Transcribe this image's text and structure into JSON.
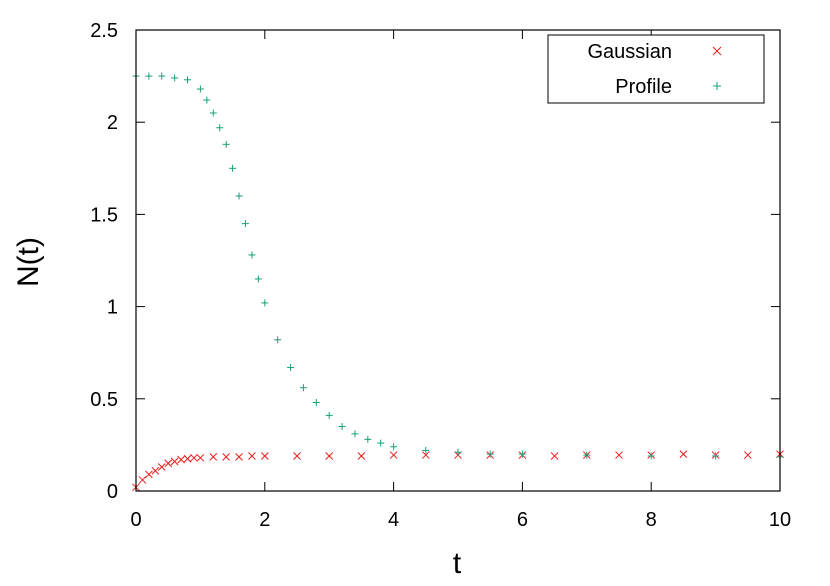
{
  "chart_data": {
    "type": "scatter",
    "title": "",
    "xlabel": "t",
    "ylabel": "N(t)",
    "xlim": [
      0,
      10
    ],
    "ylim": [
      0,
      2.5
    ],
    "x_ticks": [
      0,
      2,
      4,
      6,
      8,
      10
    ],
    "x_tick_labels": [
      "0",
      "2",
      "4",
      "6",
      "8",
      "10"
    ],
    "y_ticks": [
      0,
      0.5,
      1,
      1.5,
      2,
      2.5
    ],
    "y_tick_labels": [
      "0",
      "0.5",
      "1",
      "1.5",
      "2",
      "2.5"
    ],
    "grid": false,
    "legend_position": "top-right",
    "series": [
      {
        "name": "Gaussian",
        "color": "#ee1c1c",
        "marker": "x",
        "x": [
          0,
          0.1,
          0.2,
          0.3,
          0.4,
          0.5,
          0.6,
          0.7,
          0.8,
          0.9,
          1.0,
          1.2,
          1.4,
          1.6,
          1.8,
          2.0,
          2.5,
          3.0,
          3.5,
          4.0,
          4.5,
          5.0,
          5.5,
          6.0,
          6.5,
          7.0,
          7.5,
          8.0,
          8.5,
          9.0,
          9.5,
          10.0
        ],
        "y": [
          0.02,
          0.06,
          0.09,
          0.11,
          0.13,
          0.15,
          0.16,
          0.17,
          0.175,
          0.18,
          0.18,
          0.185,
          0.185,
          0.185,
          0.19,
          0.19,
          0.19,
          0.19,
          0.19,
          0.195,
          0.195,
          0.195,
          0.195,
          0.195,
          0.19,
          0.195,
          0.195,
          0.195,
          0.2,
          0.195,
          0.195,
          0.2
        ]
      },
      {
        "name": "Profile",
        "color": "#16a07a",
        "marker": "+",
        "x": [
          0,
          0.2,
          0.4,
          0.6,
          0.8,
          1.0,
          1.1,
          1.2,
          1.3,
          1.4,
          1.5,
          1.6,
          1.7,
          1.8,
          1.9,
          2.0,
          2.2,
          2.4,
          2.6,
          2.8,
          3.0,
          3.2,
          3.4,
          3.6,
          3.8,
          4.0,
          4.5,
          5.0,
          5.5,
          6.0,
          7.0,
          8.0,
          9.0,
          10.0
        ],
        "y": [
          2.25,
          2.25,
          2.25,
          2.24,
          2.23,
          2.18,
          2.12,
          2.05,
          1.97,
          1.88,
          1.75,
          1.6,
          1.45,
          1.28,
          1.15,
          1.02,
          0.82,
          0.67,
          0.56,
          0.48,
          0.41,
          0.35,
          0.31,
          0.28,
          0.26,
          0.24,
          0.22,
          0.21,
          0.2,
          0.2,
          0.195,
          0.19,
          0.19,
          0.185
        ]
      }
    ]
  }
}
